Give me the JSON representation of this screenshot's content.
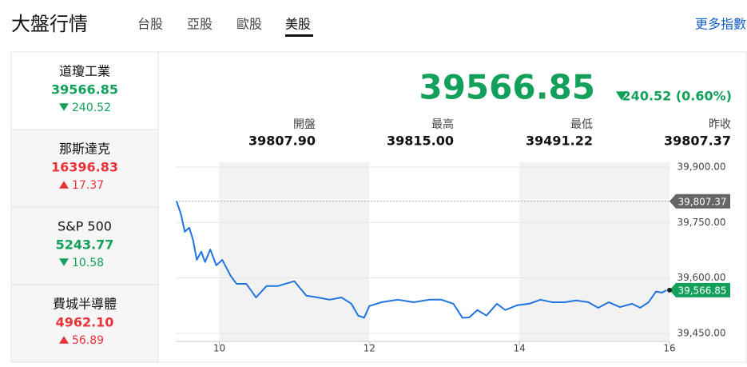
{
  "header": {
    "title": "大盤行情",
    "tabs": [
      "台股",
      "亞股",
      "歐股",
      "美股"
    ],
    "active_tab": 3,
    "more_link": "更多指數"
  },
  "sidebar": [
    {
      "name": "道瓊工業",
      "value": "39566.85",
      "change": "240.52",
      "direction": "down"
    },
    {
      "name": "那斯達克",
      "value": "16396.83",
      "change": "17.37",
      "direction": "up"
    },
    {
      "name": "S&P 500",
      "value": "5243.77",
      "change": "10.58",
      "direction": "down"
    },
    {
      "name": "費城半導體",
      "value": "4962.10",
      "change": "56.89",
      "direction": "up"
    }
  ],
  "quote": {
    "value": "39566.85",
    "change": "240.52 (0.60%)",
    "direction": "down"
  },
  "stats": [
    {
      "label": "開盤",
      "value": "39807.90"
    },
    {
      "label": "最高",
      "value": "39815.00"
    },
    {
      "label": "最低",
      "value": "39491.22"
    },
    {
      "label": "昨收",
      "value": "39807.37"
    }
  ],
  "chart_data": {
    "type": "line",
    "x": [
      9.43,
      9.49,
      9.54,
      9.6,
      9.65,
      9.7,
      9.76,
      9.81,
      9.88,
      9.96,
      10.04,
      10.15,
      10.23,
      10.36,
      10.49,
      10.63,
      10.78,
      11.0,
      11.16,
      11.31,
      11.47,
      11.63,
      11.76,
      11.85,
      11.93,
      12.0,
      12.16,
      12.38,
      12.59,
      12.8,
      12.96,
      13.12,
      13.24,
      13.33,
      13.44,
      13.56,
      13.7,
      13.81,
      13.97,
      14.13,
      14.28,
      14.44,
      14.6,
      14.76,
      14.92,
      15.05,
      15.19,
      15.34,
      15.5,
      15.61,
      15.72,
      15.82,
      15.9,
      15.96
    ],
    "series": [
      {
        "color": "#1f74e0",
        "values": [
          39808,
          39772,
          39725,
          39736,
          39703,
          39649,
          39671,
          39643,
          39677,
          39634,
          39649,
          39606,
          39584,
          39584,
          39547,
          39578,
          39578,
          39591,
          39552,
          39547,
          39541,
          39547,
          39530,
          39498,
          39492,
          39524,
          39534,
          39541,
          39534,
          39541,
          39541,
          39530,
          39492,
          39493,
          39513,
          39498,
          39530,
          39513,
          39526,
          39530,
          39541,
          39534,
          39534,
          39539,
          39534,
          39519,
          39534,
          39521,
          39530,
          39519,
          39534,
          39563,
          39560,
          39566.85
        ]
      }
    ],
    "xlim": [
      9.42,
      16
    ],
    "xticks": [
      10,
      12,
      14,
      16
    ],
    "ylim": [
      39428,
      39913
    ],
    "yticks": [
      {
        "value": 39900,
        "label": "39,900.00"
      },
      {
        "value": 39750,
        "label": "39,750.00"
      },
      {
        "value": 39600,
        "label": "39,600.00"
      },
      {
        "value": 39450,
        "label": "39,450.00"
      }
    ],
    "reference_lines": [
      {
        "value": 39807.37,
        "label": "39,807.37",
        "color": "#666666"
      }
    ],
    "last_label": {
      "value": 39566.85,
      "label": "39,566.85",
      "color": "#12a05a"
    }
  }
}
